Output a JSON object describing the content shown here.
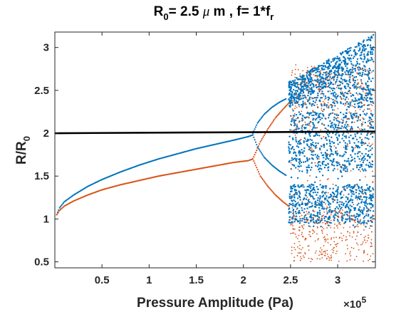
{
  "chart_data": {
    "type": "scatter",
    "title": {
      "r_main": "R",
      "r_sub": "0",
      "mid": "= 2.5 ",
      "mu": "μ",
      "rest": " m , f= 1*f",
      "f_sub": "r"
    },
    "xlabel": "Pressure Amplitude (Pa)",
    "ylabel": {
      "main": "R/R",
      "sub": "0"
    },
    "x_exponent": {
      "base": "×10",
      "power": "5"
    },
    "x_scale_factor": 100000,
    "xlim": [
      0,
      340000
    ],
    "ylim": [
      0.43,
      3.18
    ],
    "xticks": [
      50000,
      100000,
      150000,
      200000,
      250000,
      300000
    ],
    "xtick_labels": [
      "0.5",
      "1",
      "1.5",
      "2",
      "2.5",
      "3"
    ],
    "yticks": [
      0.5,
      1,
      1.5,
      2,
      2.5,
      3
    ],
    "ytick_labels": [
      "0.5",
      "1",
      "1.5",
      "2",
      "2.5",
      "3"
    ],
    "grid": false,
    "series": [
      {
        "color": "#0072BD",
        "branches": [
          {
            "x": [
              2000,
              5000,
              10000,
              20000,
              35000,
              50000,
              70000,
              90000,
              110000,
              130000,
              150000,
              170000,
              190000,
              205000,
              210000
            ],
            "y": [
              1.05,
              1.13,
              1.2,
              1.28,
              1.38,
              1.46,
              1.55,
              1.63,
              1.7,
              1.76,
              1.82,
              1.87,
              1.92,
              1.96,
              1.98
            ]
          },
          {
            "x": [
              210000,
              215000,
              222000,
              230000,
              238000,
              245000
            ],
            "y": [
              2.0,
              2.12,
              2.22,
              2.3,
              2.36,
              2.4
            ]
          },
          {
            "x": [
              210000,
              215000,
              222000,
              230000,
              238000,
              245000
            ],
            "y": [
              1.98,
              1.84,
              1.72,
              1.63,
              1.56,
              1.51
            ]
          }
        ],
        "chaos_region": [
          248000,
          338000
        ],
        "chaos_band": [
          0.9,
          3.15
        ]
      },
      {
        "color": "#D95319",
        "branches": [
          {
            "x": [
              2000,
              5000,
              10000,
              20000,
              35000,
              50000,
              70000,
              90000,
              110000,
              130000,
              150000,
              170000,
              190000,
              205000,
              210000
            ],
            "y": [
              1.05,
              1.1,
              1.15,
              1.21,
              1.28,
              1.34,
              1.4,
              1.45,
              1.5,
              1.54,
              1.58,
              1.62,
              1.66,
              1.68,
              1.7
            ]
          },
          {
            "x": [
              210000,
              218000,
              226000,
              234000,
              242000,
              248000
            ],
            "y": [
              1.7,
              1.9,
              2.05,
              2.18,
              2.28,
              2.35
            ]
          },
          {
            "x": [
              210000,
              218000,
              226000,
              234000,
              242000,
              248000
            ],
            "y": [
              1.7,
              1.5,
              1.38,
              1.28,
              1.2,
              1.15
            ]
          }
        ],
        "chaos_region": [
          250000,
          338000
        ],
        "chaos_band": [
          0.5,
          2.8
        ]
      },
      {
        "color": "#000000",
        "x": [
          0,
          340000
        ],
        "y": [
          2.0,
          2.02
        ]
      }
    ]
  }
}
